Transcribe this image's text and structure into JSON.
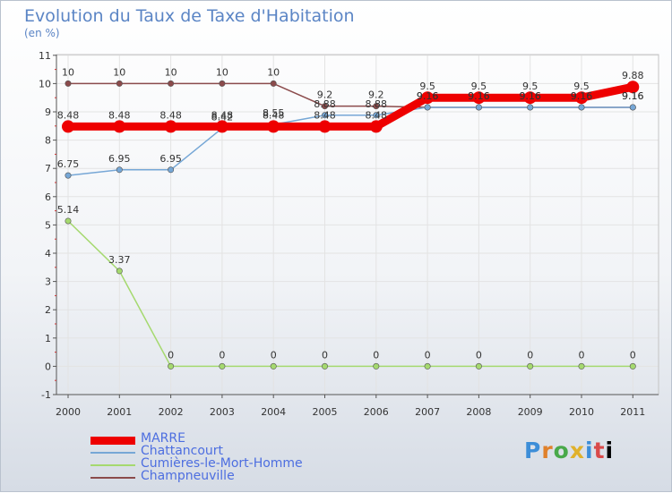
{
  "header": {
    "title": "Evolution du Taux de Taxe d'Habitation",
    "subtitle": "(en %)"
  },
  "logo": {
    "letters": [
      "P",
      "r",
      "o",
      "x",
      "i",
      "t",
      "i"
    ]
  },
  "chart_data": {
    "type": "line",
    "title": "Evolution du Taux de Taxe d'Habitation",
    "ylabel": "(en %)",
    "xlabel": "",
    "ylim": [
      -1,
      11
    ],
    "x": [
      "2000",
      "2001",
      "2002",
      "2003",
      "2004",
      "2005",
      "2006",
      "2007",
      "2008",
      "2009",
      "2010",
      "2011"
    ],
    "y_ticks": [
      "-1",
      "0",
      "1",
      "2",
      "3",
      "4",
      "5",
      "6",
      "7",
      "8",
      "9",
      "10",
      "11"
    ],
    "series": [
      {
        "name": "MARRE",
        "color": "#ee0000",
        "values": [
          8.48,
          8.48,
          8.48,
          8.48,
          8.48,
          8.48,
          8.48,
          9.5,
          9.5,
          9.5,
          9.5,
          9.88
        ],
        "labels": [
          "8.48",
          "8.48",
          "8.48",
          "8.48",
          "8.48",
          "8.48",
          "8.48",
          "9.5",
          "9.5",
          "9.5",
          "9.5",
          "9.88"
        ]
      },
      {
        "name": "Chattancourt",
        "color": "#76a7d6",
        "values": [
          6.75,
          6.95,
          6.95,
          8.42,
          8.55,
          8.88,
          8.88,
          9.16,
          9.16,
          9.16,
          9.16,
          9.16
        ],
        "labels": [
          "6.75",
          "6.95",
          "6.95",
          "8.42",
          "8.55",
          "8.88",
          "8.88",
          "9.16",
          "9.16",
          "9.16",
          "9.16",
          "9.16"
        ]
      },
      {
        "name": "Cumières-le-Mort-Homme",
        "color": "#a5d96f",
        "values": [
          5.14,
          3.37,
          0,
          0,
          0,
          0,
          0,
          0,
          0,
          0,
          0,
          0
        ],
        "labels": [
          "5.14",
          "3.37",
          "0",
          "0",
          "0",
          "0",
          "0",
          "0",
          "0",
          "0",
          "0",
          "0"
        ]
      },
      {
        "name": "Champneuville",
        "color": "#8b4b4b",
        "values": [
          10,
          10,
          10,
          10,
          10,
          9.2,
          9.2,
          9.16,
          9.16,
          9.16,
          9.16,
          9.16
        ],
        "labels": [
          "10",
          "10",
          "10",
          "10",
          "10",
          "9.2",
          "9.2",
          "9.16",
          "9.16",
          "9.16",
          "9.16",
          "9.16"
        ]
      }
    ]
  }
}
